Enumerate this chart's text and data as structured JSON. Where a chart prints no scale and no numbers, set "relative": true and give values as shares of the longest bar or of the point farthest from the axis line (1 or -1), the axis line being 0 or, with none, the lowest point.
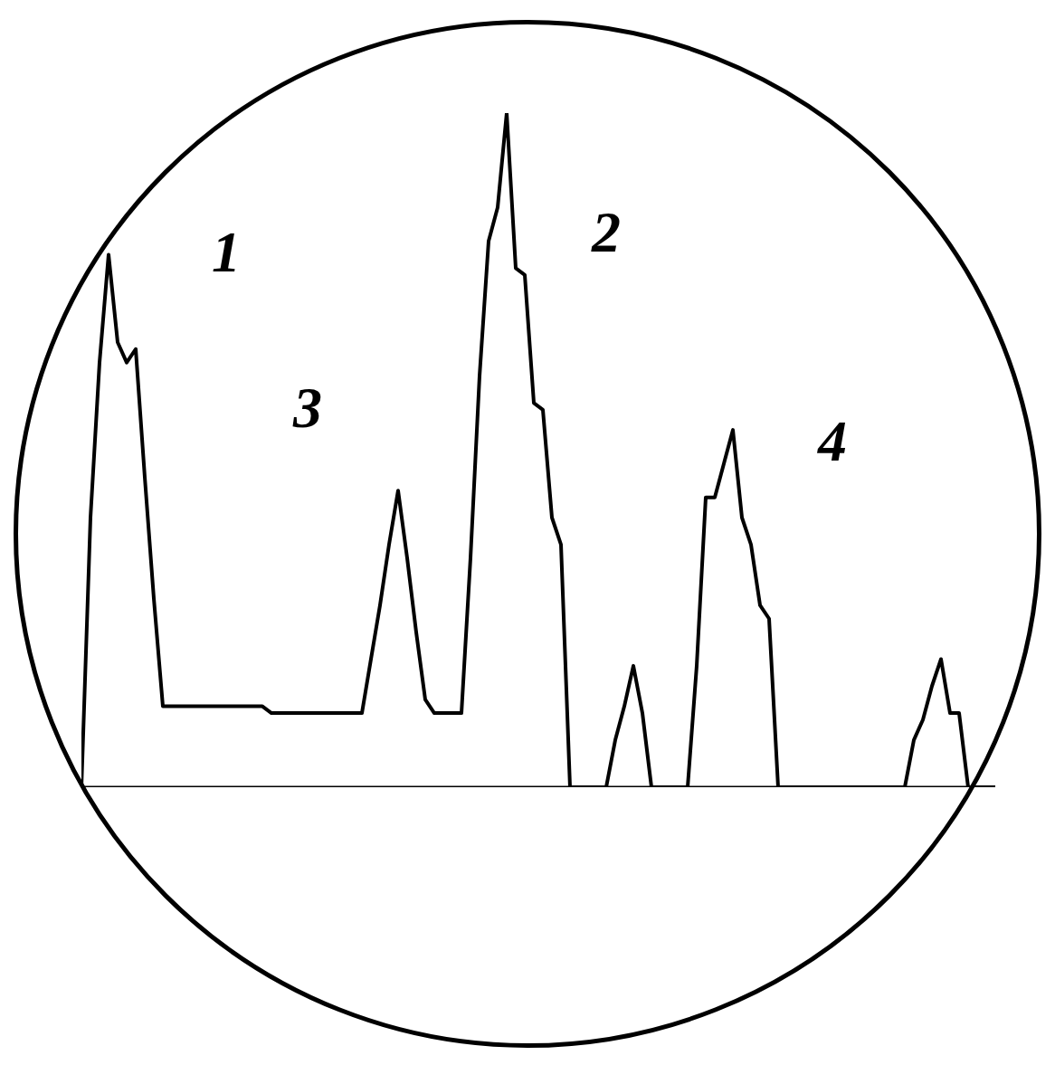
{
  "chart_data": {
    "type": "line",
    "relative": true,
    "grid": false,
    "marker": "none",
    "line_style": "solid",
    "categories": [
      null,
      null,
      null,
      null,
      null,
      null,
      null,
      null,
      null,
      null,
      null,
      null,
      null,
      null,
      null,
      null,
      null,
      null,
      null,
      null,
      null,
      null,
      null,
      null,
      null,
      null,
      null,
      null,
      null,
      null,
      null,
      null,
      null,
      null,
      null,
      null,
      null,
      null,
      null,
      null,
      null,
      null,
      null,
      null,
      null,
      null,
      null,
      null,
      null,
      null,
      null,
      null,
      null,
      null,
      null,
      null,
      null,
      null,
      null,
      null,
      null,
      null,
      null,
      null,
      null,
      null,
      null,
      null,
      null,
      null,
      null,
      null,
      null,
      null,
      null,
      null,
      null,
      null,
      null,
      null,
      null,
      null,
      null,
      null,
      null,
      null,
      null,
      null,
      null,
      null,
      null,
      null,
      null,
      null,
      null,
      null,
      null,
      null,
      null,
      null,
      null,
      null
    ],
    "series": [
      {
        "color": "#000000",
        "values": [
          0,
          0.4,
          0.63,
          0.79,
          0.66,
          0.63,
          0.65,
          0.46,
          0.28,
          0.12,
          0.12,
          0.12,
          0.12,
          0.12,
          0.12,
          0.12,
          0.12,
          0.12,
          0.12,
          0.12,
          0.12,
          0.11,
          0.11,
          0.11,
          0.11,
          0.11,
          0.11,
          0.11,
          0.11,
          0.11,
          0.11,
          0.11,
          0.19,
          0.27,
          0.36,
          0.44,
          0.34,
          0.23,
          0.13,
          0.11,
          0.11,
          0.11,
          0.11,
          0.34,
          0.61,
          0.81,
          0.86,
          1,
          0.77,
          0.76,
          0.57,
          0.56,
          0.4,
          0.36,
          0,
          0,
          0,
          0,
          0,
          0.07,
          0.12,
          0.18,
          0.11,
          0,
          0,
          0,
          0,
          0,
          0.18,
          0.43,
          0.43,
          0.48,
          0.53,
          0.4,
          0.36,
          0.27,
          0.25,
          0,
          0,
          0,
          0,
          0,
          0,
          0,
          0,
          0,
          0,
          0,
          0,
          0,
          0,
          0,
          0.07,
          0.1,
          0.15,
          0.19,
          0.11,
          0.11,
          0,
          0,
          0,
          0
        ]
      }
    ],
    "annotations": [
      "1",
      "2",
      "3",
      "4"
    ]
  }
}
